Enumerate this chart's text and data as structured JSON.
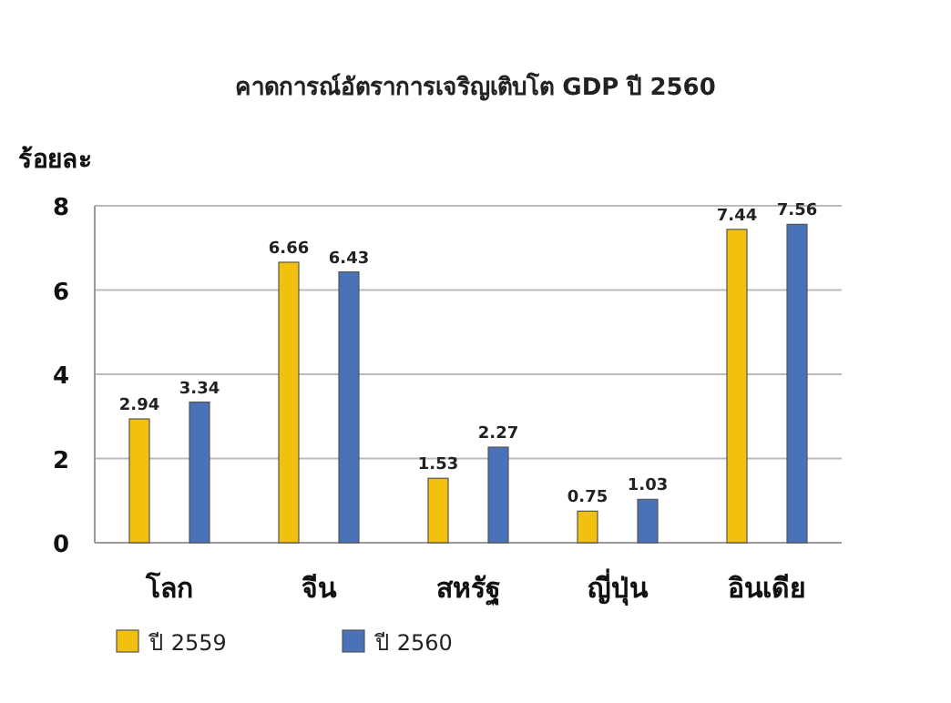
{
  "chart_data": {
    "type": "bar",
    "title": "คาดการณ์อัตราการเจริญเติบโต GDP ปี 2560",
    "ylabel": "ร้อยละ",
    "categories": [
      "โลก",
      "จีน",
      "สหรัฐ",
      "ญี่ปุ่น",
      "อินเดีย"
    ],
    "series": [
      {
        "name": "ปี 2559",
        "color": "#f2c00f",
        "values": [
          2.94,
          6.66,
          1.53,
          0.75,
          7.44
        ]
      },
      {
        "name": "ปี 2560",
        "color": "#4a72b8",
        "values": [
          3.34,
          6.43,
          2.27,
          1.03,
          7.56
        ]
      }
    ],
    "ylim": [
      0,
      8
    ],
    "yticks": [
      0,
      2,
      4,
      6,
      8
    ],
    "grid": "y",
    "legend": "bottom left",
    "data_labels": true
  }
}
